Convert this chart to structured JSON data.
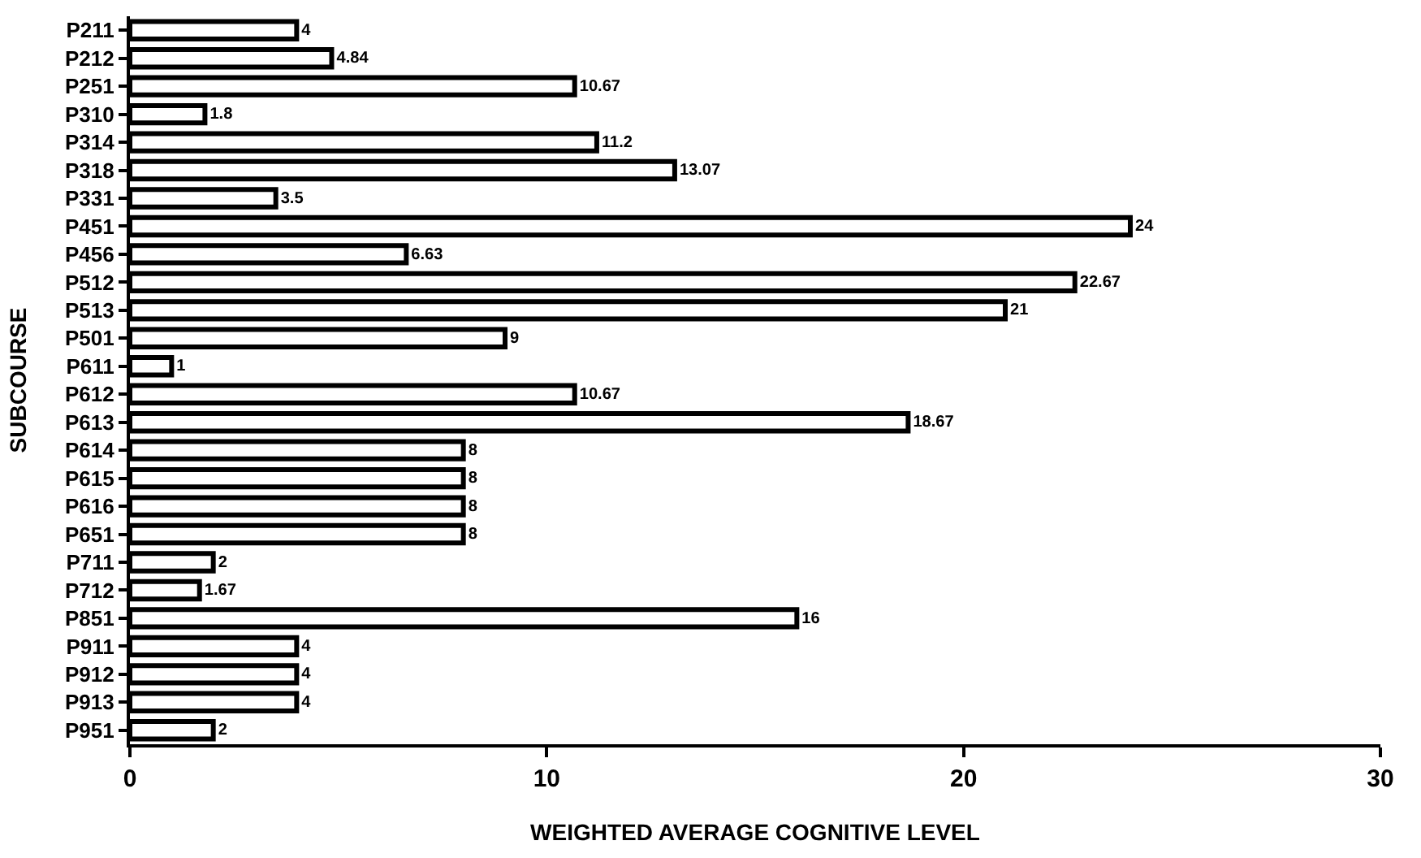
{
  "chart_data": {
    "type": "bar",
    "orientation": "horizontal",
    "xlabel": "WEIGHTED AVERAGE COGNITIVE LEVEL",
    "ylabel": "SUBCOURSE",
    "categories": [
      "P211",
      "P212",
      "P251",
      "P310",
      "P314",
      "P318",
      "P331",
      "P451",
      "P456",
      "P512",
      "P513",
      "P501",
      "P611",
      "P612",
      "P613",
      "P614",
      "P615",
      "P616",
      "P651",
      "P711",
      "P712",
      "P851",
      "P911",
      "P912",
      "P913",
      "P951"
    ],
    "values": [
      4,
      4.84,
      10.67,
      1.8,
      11.2,
      13.07,
      3.5,
      24,
      6.63,
      22.67,
      21,
      9,
      1,
      10.67,
      18.67,
      8,
      8,
      8,
      8,
      2,
      1.67,
      16,
      4,
      4,
      4,
      2
    ],
    "color": "#000000",
    "data_labels": true,
    "xlim": [
      0,
      30
    ],
    "xticks": [
      0,
      10,
      20,
      30
    ]
  }
}
